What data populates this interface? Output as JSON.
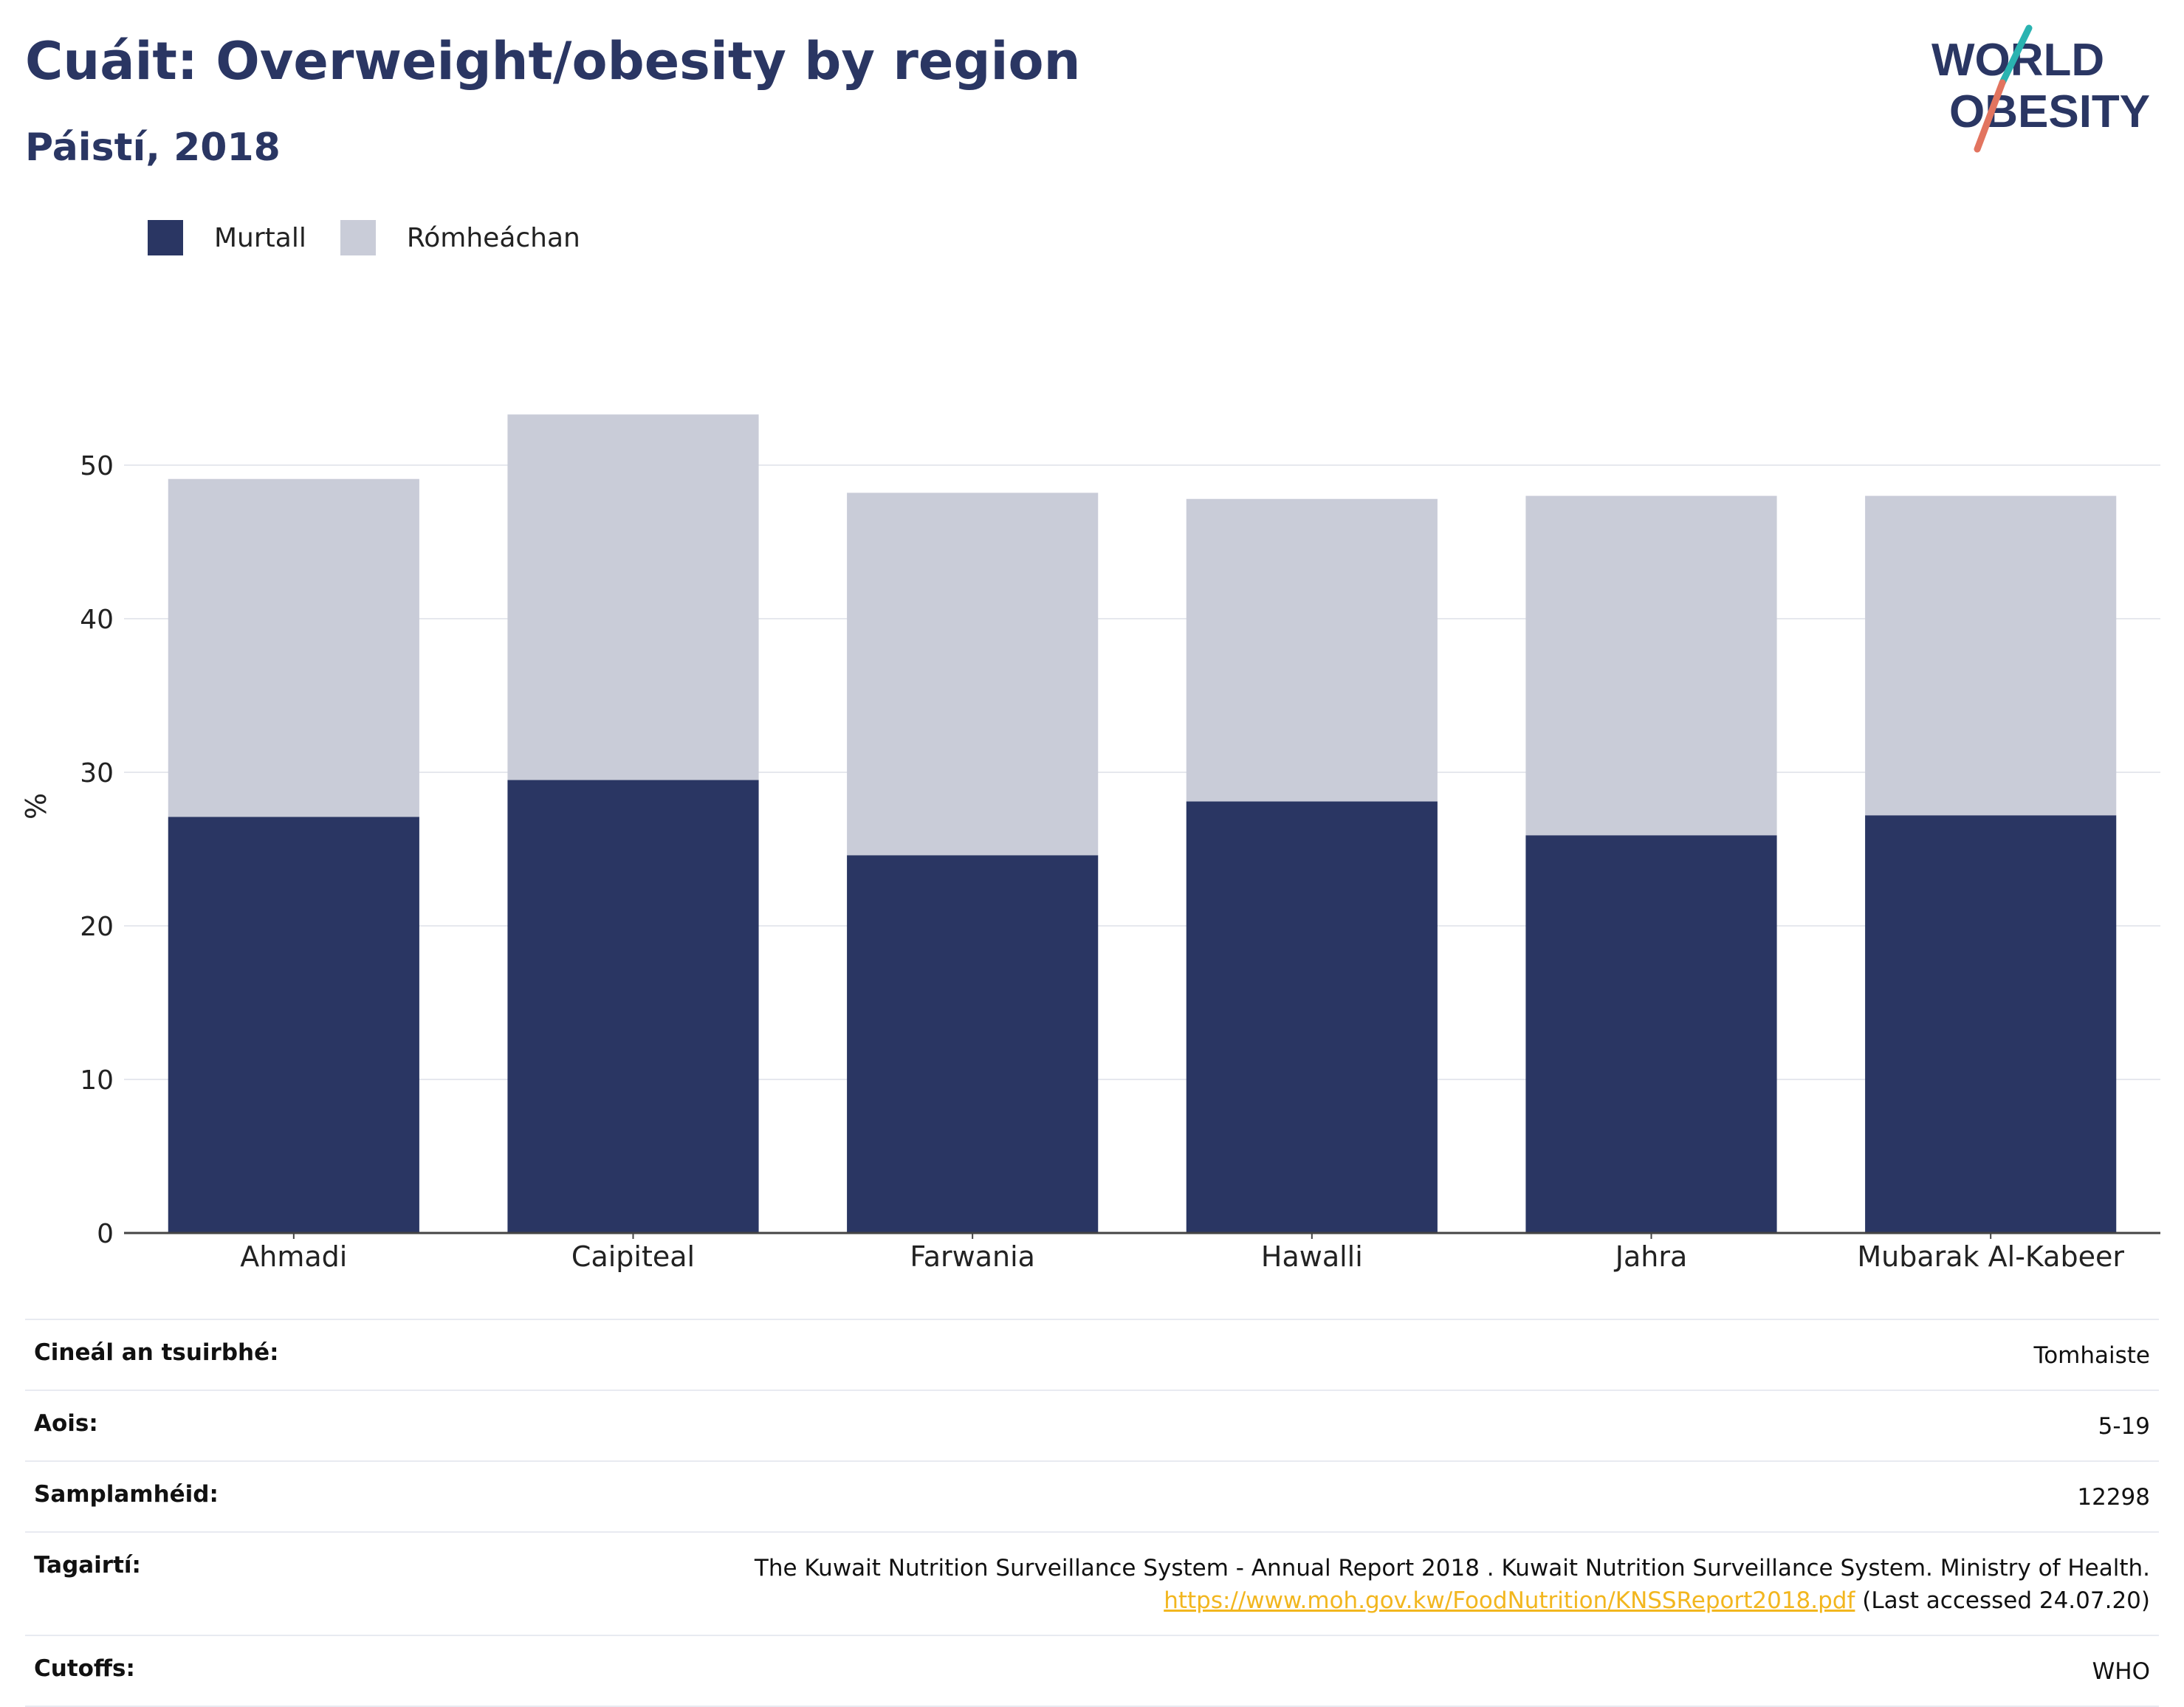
{
  "title": "Cuáit: Overweight/obesity by region",
  "subtitle": "Páistí, 2018",
  "logo": {
    "line1": "WORLD",
    "line2": "OBESITY"
  },
  "legend": [
    {
      "label": "Murtall",
      "color": "#2a3663"
    },
    {
      "label": "Rómheáchan",
      "color": "#c9ccd8"
    }
  ],
  "chart_data": {
    "type": "bar",
    "stacked": true,
    "categories": [
      "Ahmadi",
      "Caipiteal",
      "Farwania",
      "Hawalli",
      "Jahra",
      "Mubarak Al-Kabeer"
    ],
    "series": [
      {
        "name": "Murtall",
        "color": "#2a3663",
        "values": [
          27.1,
          29.5,
          24.6,
          28.1,
          25.9,
          27.2
        ]
      },
      {
        "name": "Rómheáchan",
        "color": "#c9ccd8",
        "values": [
          22.0,
          23.8,
          23.6,
          19.7,
          22.1,
          20.8
        ]
      }
    ],
    "ylabel": "%",
    "ylim": [
      0,
      60
    ],
    "yticks": [
      0,
      10,
      20,
      30,
      40,
      50
    ],
    "grid": true,
    "legend_position": "top-left"
  },
  "info": {
    "survey_type": {
      "label": "Cineál an tsuirbhé:",
      "value": "Tomhaiste"
    },
    "age": {
      "label": "Aois:",
      "value": "5-19"
    },
    "sample": {
      "label": "Samplamhéid:",
      "value": "12298"
    },
    "reference": {
      "label": "Tagairtí:",
      "text": "The Kuwait Nutrition Surveillance System - Annual Report 2018 . Kuwait Nutrition Surveillance System. Ministry of Health.",
      "link": "https://www.moh.gov.kw/FoodNutrition/KNSSReport2018.pdf",
      "accessed": "(Last accessed 24.07.20)"
    },
    "cutoffs": {
      "label": "Cutoffs:",
      "value": "WHO"
    }
  }
}
